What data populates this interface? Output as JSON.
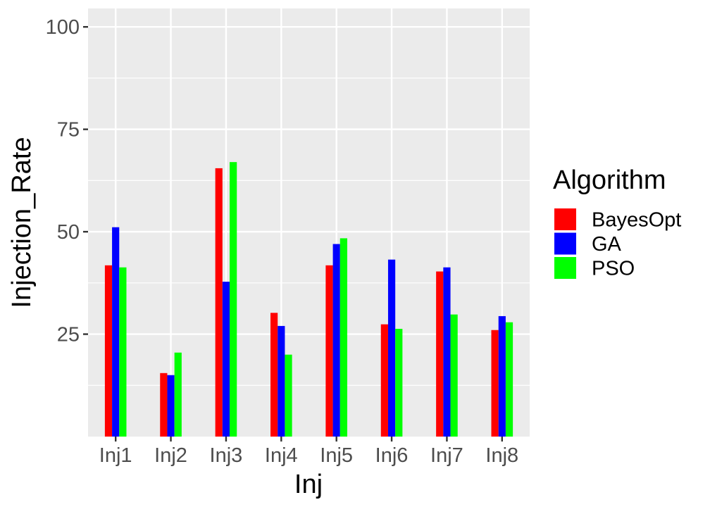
{
  "chart_data": {
    "type": "bar",
    "xlabel": "Inj",
    "ylabel": "Injection_Rate",
    "categories": [
      "Inj1",
      "Inj2",
      "Inj3",
      "Inj4",
      "Inj5",
      "Inj6",
      "Inj7",
      "Inj8"
    ],
    "series": [
      {
        "name": "BayesOpt",
        "color": "#ff0000",
        "values": [
          41.8,
          15.5,
          65.5,
          30.2,
          41.8,
          27.4,
          40.3,
          26.0
        ]
      },
      {
        "name": "GA",
        "color": "#0000ff",
        "values": [
          51.1,
          15.0,
          37.8,
          27.0,
          47.0,
          43.2,
          41.3,
          29.4
        ]
      },
      {
        "name": "PSO",
        "color": "#00ff00",
        "values": [
          41.3,
          20.5,
          67.0,
          20.0,
          48.4,
          26.3,
          29.8,
          27.9
        ]
      }
    ],
    "ylim": [
      0,
      104.5
    ],
    "yticks": [
      25,
      50,
      75,
      100
    ],
    "ytick_labels": [
      "25",
      "50",
      "75",
      "100"
    ],
    "legend": {
      "title": "Algorithm",
      "position": "right"
    },
    "grid": true,
    "panel_background": "#ebebeb"
  }
}
